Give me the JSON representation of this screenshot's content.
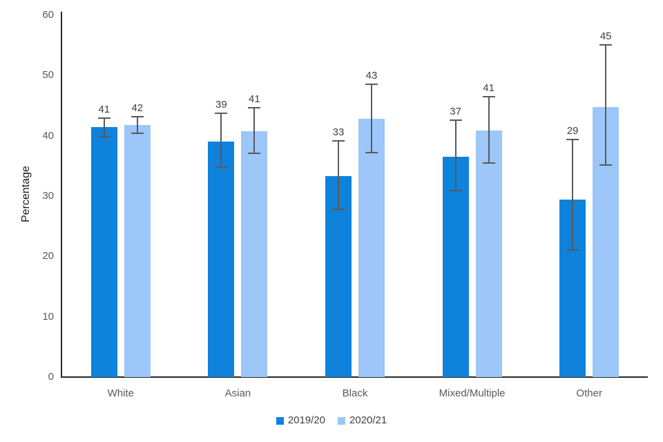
{
  "chart_data": {
    "type": "bar",
    "title": "",
    "xlabel": "",
    "ylabel": "Percentage",
    "ylim": [
      0,
      60
    ],
    "yticks": [
      0,
      10,
      20,
      30,
      40,
      50,
      60
    ],
    "grid": false,
    "legend_position": "bottom",
    "background_color": "#ffffff",
    "axis_color": "#262626",
    "tick_label_color": "#595959",
    "value_label_color": "#404040",
    "error_bar_color": "#595959",
    "categories": [
      "White",
      "Asian",
      "Black",
      "Mixed/Multiple",
      "Other"
    ],
    "series": [
      {
        "name": "2019/20",
        "color": "#0f82db",
        "values": [
          41.4,
          39.1,
          33.3,
          36.5,
          29.4
        ],
        "labels": [
          "41",
          "39",
          "33",
          "37",
          "29"
        ],
        "error_low": [
          39.9,
          34.8,
          27.8,
          30.9,
          21.1
        ],
        "error_high": [
          42.9,
          43.7,
          39.2,
          42.6,
          39.4
        ]
      },
      {
        "name": "2020/21",
        "color": "#9cc7f8",
        "values": [
          41.8,
          40.8,
          42.8,
          40.9,
          44.8
        ],
        "labels": [
          "42",
          "41",
          "43",
          "41",
          "45"
        ],
        "error_low": [
          40.4,
          37.1,
          37.2,
          35.5,
          35.2
        ],
        "error_high": [
          43.2,
          44.6,
          48.5,
          46.5,
          55.1
        ]
      }
    ]
  }
}
